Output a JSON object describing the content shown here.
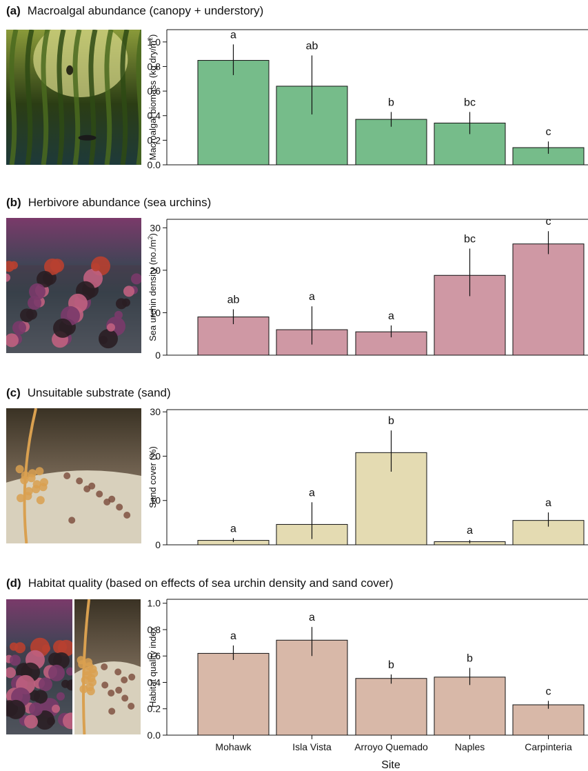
{
  "panels": [
    {
      "letter": "(a)",
      "title": "Macroalgal abundance (canopy + understory)",
      "photo": "kelp-forest-photo",
      "photo_colors": [
        "#2b3d14",
        "#8a9a3a",
        "#d9d98a",
        "#4a7a5a",
        "#1e3a3a"
      ]
    },
    {
      "letter": "(b)",
      "title": "Herbivore abundance (sea urchins)",
      "photo": "urchin-barren-photo",
      "photo_colors": [
        "#1f4a4a",
        "#7a3a6a",
        "#c06080",
        "#2a1e24",
        "#5a7a7a"
      ]
    },
    {
      "letter": "(c)",
      "title": "Unsuitable substrate (sand)",
      "photo": "sand-substrate-photo",
      "photo_colors": [
        "#3a3224",
        "#b0a890",
        "#d9a050",
        "#7a6a58",
        "#d8d0bc"
      ]
    },
    {
      "letter": "(d)",
      "title": "Habitat quality (based on effects of sea urchin density and sand cover)",
      "photo": "urchin-and-sand-photos",
      "photo_colors": [
        "#1f4a4a",
        "#8a4a7a",
        "#d8d0bc",
        "#9a8870",
        "#3a3224"
      ]
    }
  ],
  "chart_data": [
    {
      "type": "bar",
      "categories": [
        "Mohawk",
        "Isla Vista",
        "Arroyo Quemado",
        "Naples",
        "Carpinteria"
      ],
      "values": [
        0.85,
        0.64,
        0.37,
        0.34,
        0.14
      ],
      "error_low": [
        0.73,
        0.41,
        0.31,
        0.25,
        0.09
      ],
      "error_high": [
        0.98,
        0.89,
        0.43,
        0.43,
        0.19
      ],
      "letters": [
        "a",
        "ab",
        "b",
        "bc",
        "c"
      ],
      "ylabel": "Macroalgal biomass (kg dry/m",
      "ylabel_sup": "2",
      "ylabel_tail": ")",
      "ylim": [
        0,
        1.1
      ],
      "yticks": [
        "0.0",
        "0.2",
        "0.4",
        "0.6",
        "0.8",
        "1.0"
      ],
      "color": "#76bc8a",
      "show_xticks": false
    },
    {
      "type": "bar",
      "categories": [
        "Mohawk",
        "Isla Vista",
        "Arroyo Quemado",
        "Naples",
        "Carpinteria"
      ],
      "values": [
        9,
        6,
        5.5,
        18.8,
        26.2
      ],
      "error_low": [
        7.3,
        2.5,
        4.2,
        13.9,
        23.8
      ],
      "error_high": [
        10.8,
        11.5,
        7.0,
        25.1,
        29.2
      ],
      "letters": [
        "ab",
        "a",
        "a",
        "bc",
        "c"
      ],
      "ylabel": "Sea urchin density (no./m",
      "ylabel_sup": "2",
      "ylabel_tail": ")",
      "ylim": [
        0,
        32
      ],
      "yticks": [
        "0",
        "10",
        "20",
        "30"
      ],
      "color": "#cf98a4",
      "show_xticks": false
    },
    {
      "type": "bar",
      "categories": [
        "Mohawk",
        "Isla Vista",
        "Arroyo Quemado",
        "Naples",
        "Carpinteria"
      ],
      "values": [
        1.0,
        4.6,
        20.8,
        0.7,
        5.5
      ],
      "error_low": [
        0.6,
        1.3,
        16.5,
        0.3,
        4.1
      ],
      "error_high": [
        1.5,
        9.6,
        25.8,
        1.1,
        7.3
      ],
      "letters": [
        "a",
        "a",
        "b",
        "a",
        "a"
      ],
      "ylabel": "Sand cover (%)",
      "ylabel_sup": "",
      "ylabel_tail": "",
      "ylim": [
        0,
        30.5
      ],
      "yticks": [
        "0",
        "10",
        "20",
        "30"
      ],
      "color": "#e4dbb2",
      "show_xticks": false
    },
    {
      "type": "bar",
      "categories": [
        "Mohawk",
        "Isla Vista",
        "Arroyo Quemado",
        "Naples",
        "Carpinteria"
      ],
      "values": [
        0.62,
        0.72,
        0.43,
        0.44,
        0.23
      ],
      "error_low": [
        0.57,
        0.6,
        0.39,
        0.38,
        0.2
      ],
      "error_high": [
        0.68,
        0.82,
        0.46,
        0.51,
        0.26
      ],
      "letters": [
        "a",
        "a",
        "b",
        "b",
        "c"
      ],
      "ylabel": "Habitat quality index",
      "ylabel_sup": "",
      "ylabel_tail": "",
      "ylim": [
        0,
        1.03
      ],
      "yticks": [
        "0.0",
        "0.2",
        "0.4",
        "0.6",
        "0.8",
        "1.0"
      ],
      "color": "#d8b8a8",
      "show_xticks": true,
      "xlabel": "Site"
    }
  ]
}
